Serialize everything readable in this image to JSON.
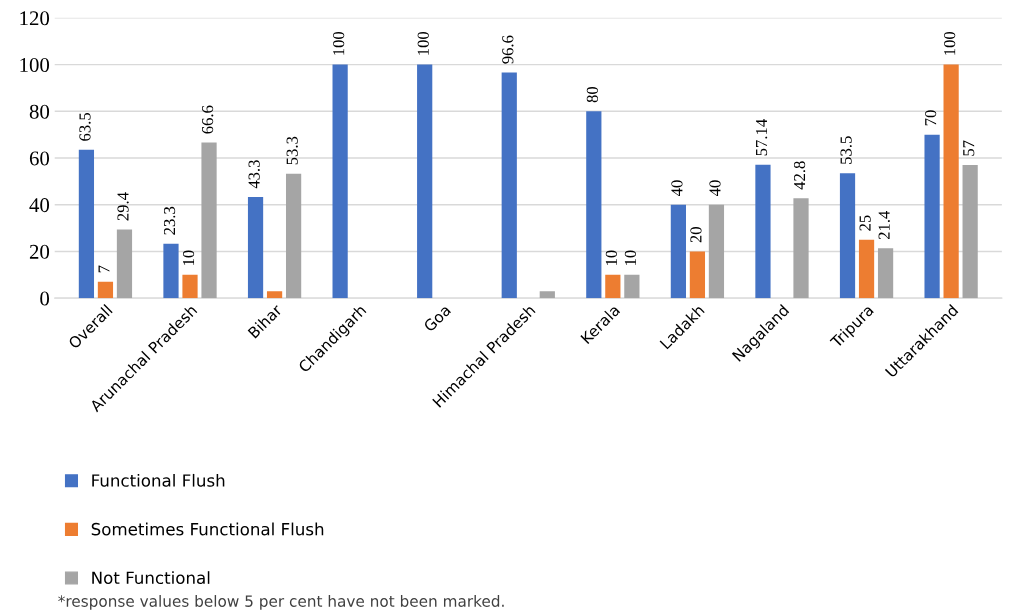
{
  "chart_data": {
    "type": "bar",
    "categories": [
      "Overall",
      "Arunachal Pradesh",
      "Bihar",
      "Chandigarh",
      "Goa",
      "Himachal Pradesh",
      "Kerala",
      "Ladakh",
      "Nagaland",
      "Tripura",
      "Uttarakhand"
    ],
    "series": [
      {
        "name": "Functional Flush",
        "color": "#4472c4",
        "values": [
          63.5,
          23.3,
          43.3,
          100,
          100,
          96.6,
          80,
          40,
          57.14,
          53.5,
          70
        ],
        "value_labels": [
          "63.5",
          "23.3",
          "43.3",
          "100",
          "100",
          "96.6",
          "80",
          "40",
          "57.14",
          "53.5",
          "70"
        ]
      },
      {
        "name": "Sometimes Functional Flush",
        "color": "#ed7d31",
        "values": [
          7,
          10,
          3,
          null,
          null,
          null,
          10,
          20,
          null,
          25,
          100
        ],
        "value_labels": [
          "7",
          "10",
          null,
          null,
          null,
          null,
          "10",
          "20",
          null,
          "25",
          "100"
        ]
      },
      {
        "name": "Not Functional",
        "color": "#a5a5a5",
        "values": [
          29.4,
          66.6,
          53.3,
          null,
          null,
          3,
          10,
          40,
          42.8,
          21.4,
          57
        ],
        "value_labels": [
          "29.4",
          "66.6",
          "53.3",
          null,
          null,
          null,
          "10",
          "40",
          "42.8",
          "21.4",
          "57"
        ]
      }
    ],
    "ylim": [
      0,
      120
    ],
    "yticks": [
      0,
      20,
      40,
      60,
      80,
      100,
      120
    ],
    "grid": "y",
    "legend": "bottom left",
    "annotations": [
      "*response values below 5 per cent have not been marked."
    ]
  }
}
